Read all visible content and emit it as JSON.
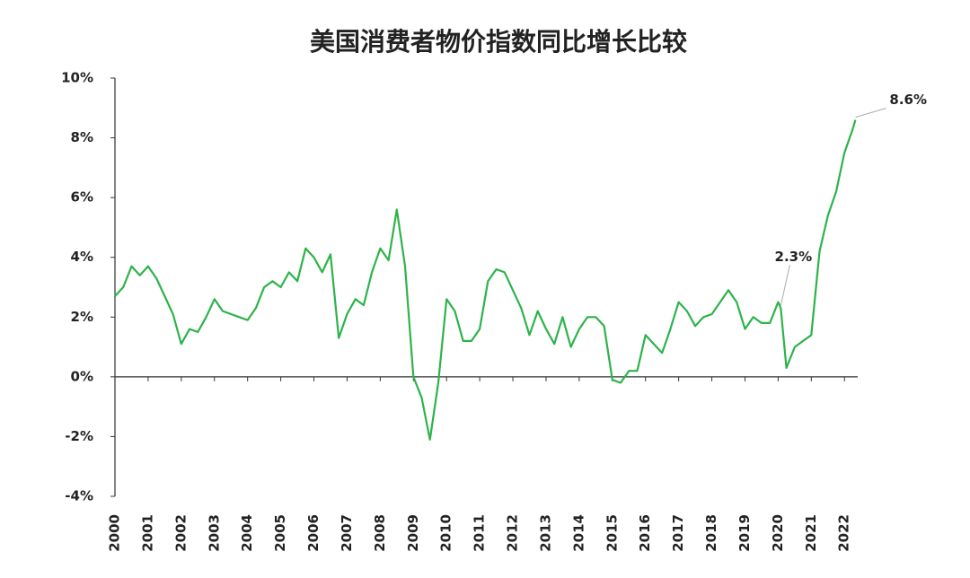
{
  "chart_data": {
    "type": "line",
    "title": "美国消费者物价指数同比增长比较",
    "x": [
      2000,
      2000.25,
      2000.5,
      2000.75,
      2001,
      2001.25,
      2001.5,
      2001.75,
      2002,
      2002.25,
      2002.5,
      2002.75,
      2003,
      2003.25,
      2003.5,
      2003.75,
      2004,
      2004.25,
      2004.5,
      2004.75,
      2005,
      2005.25,
      2005.5,
      2005.75,
      2006,
      2006.25,
      2006.5,
      2006.75,
      2007,
      2007.25,
      2007.5,
      2007.75,
      2008,
      2008.25,
      2008.5,
      2008.75,
      2009,
      2009.25,
      2009.5,
      2009.75,
      2010,
      2010.25,
      2010.5,
      2010.75,
      2011,
      2011.25,
      2011.5,
      2011.75,
      2012,
      2012.25,
      2012.5,
      2012.75,
      2013,
      2013.25,
      2013.5,
      2013.75,
      2014,
      2014.25,
      2014.5,
      2014.75,
      2015,
      2015.25,
      2015.5,
      2015.75,
      2016,
      2016.25,
      2016.5,
      2016.75,
      2017,
      2017.25,
      2017.5,
      2017.75,
      2018,
      2018.25,
      2018.5,
      2018.75,
      2019,
      2019.25,
      2019.5,
      2019.75,
      2020,
      2020.08,
      2020.25,
      2020.5,
      2020.75,
      2021,
      2021.25,
      2021.5,
      2021.75,
      2022,
      2022.25,
      2022.33
    ],
    "series": [
      {
        "name": "CPI",
        "color": "#2db34a",
        "values": [
          2.7,
          3.0,
          3.7,
          3.4,
          3.7,
          3.3,
          2.7,
          2.1,
          1.1,
          1.6,
          1.5,
          2.0,
          2.6,
          2.2,
          2.1,
          2.0,
          1.9,
          2.3,
          3.0,
          3.2,
          3.0,
          3.5,
          3.2,
          4.3,
          4.0,
          3.5,
          4.1,
          1.3,
          2.1,
          2.6,
          2.4,
          3.5,
          4.3,
          3.9,
          5.6,
          3.7,
          0.0,
          -0.7,
          -2.1,
          -0.2,
          2.6,
          2.2,
          1.2,
          1.2,
          1.6,
          3.2,
          3.6,
          3.5,
          2.9,
          2.3,
          1.4,
          2.2,
          1.6,
          1.1,
          2.0,
          1.0,
          1.6,
          2.0,
          2.0,
          1.7,
          -0.1,
          -0.2,
          0.2,
          0.2,
          1.4,
          1.1,
          0.8,
          1.6,
          2.5,
          2.2,
          1.7,
          2.0,
          2.1,
          2.5,
          2.9,
          2.5,
          1.6,
          2.0,
          1.8,
          1.8,
          2.5,
          2.3,
          0.3,
          1.0,
          1.2,
          1.4,
          4.2,
          5.4,
          6.2,
          7.5,
          8.3,
          8.6
        ]
      }
    ],
    "annotations": [
      {
        "text": "2.3%",
        "x": 2020.08,
        "value": 2.3
      },
      {
        "text": "8.6%",
        "x": 2022.33,
        "value": 8.6
      }
    ],
    "xlim": [
      2000,
      2022.4
    ],
    "xticks": [
      2000,
      2001,
      2002,
      2003,
      2004,
      2005,
      2006,
      2007,
      2008,
      2009,
      2010,
      2011,
      2012,
      2013,
      2014,
      2015,
      2016,
      2017,
      2018,
      2019,
      2020,
      2021,
      2022
    ],
    "ylim": [
      -4,
      10
    ],
    "yticks": [
      {
        "value": -4,
        "label": "-4%"
      },
      {
        "value": -2,
        "label": "-2%"
      },
      {
        "value": 0,
        "label": "0%"
      },
      {
        "value": 2,
        "label": "2%"
      },
      {
        "value": 4,
        "label": "4%"
      },
      {
        "value": 6,
        "label": "6%"
      },
      {
        "value": 8,
        "label": "8%"
      },
      {
        "value": 10,
        "label": "10%"
      }
    ]
  }
}
